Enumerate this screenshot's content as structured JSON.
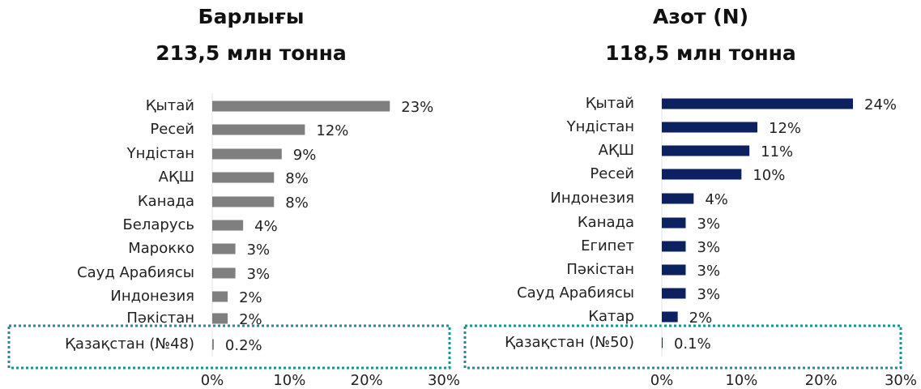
{
  "chart_data": [
    {
      "type": "barh",
      "title": "Барлығы",
      "subtitle": "213,5 млн тонна",
      "categories": [
        "Қытай",
        "Ресей",
        "Үндістан",
        "АҚШ",
        "Канада",
        "Беларусь",
        "Марокко",
        "Сауд Арабиясы",
        "Индонезия",
        "Пәкістан",
        "Қазақстан (№48)"
      ],
      "values": [
        23,
        12,
        9,
        8,
        8,
        4,
        3,
        3,
        2,
        2,
        0.2
      ],
      "value_labels": [
        "23%",
        "12%",
        "9%",
        "8%",
        "8%",
        "4%",
        "3%",
        "3%",
        "2%",
        "2%",
        "0.2%"
      ],
      "color": "#7f7f7f",
      "xlim": [
        0,
        30
      ],
      "xticks": [
        {
          "value": 0,
          "label": "0%"
        },
        {
          "value": 10,
          "label": "10%"
        },
        {
          "value": 20,
          "label": "20%"
        },
        {
          "value": 30,
          "label": "30%"
        }
      ]
    },
    {
      "type": "barh",
      "title": "Азот (N)",
      "subtitle": "118,5 млн тонна",
      "categories": [
        "Қытай",
        "Үндістан",
        "АҚШ",
        "Ресей",
        "Индонезия",
        "Канада",
        "Египет",
        "Пәкістан",
        "Сауд Арабиясы",
        "Катар",
        "Қазақстан (№50)"
      ],
      "values": [
        24,
        12,
        11,
        10,
        4,
        3,
        3,
        3,
        3,
        2,
        0.1
      ],
      "value_labels": [
        "24%",
        "12%",
        "11%",
        "10%",
        "4%",
        "3%",
        "3%",
        "3%",
        "3%",
        "2%",
        "0.1%"
      ],
      "color": "#0b2160",
      "xlim": [
        0,
        30
      ],
      "xticks": [
        {
          "value": 0,
          "label": "0%"
        },
        {
          "value": 10,
          "label": "10%"
        },
        {
          "value": 20,
          "label": "20%"
        },
        {
          "value": 30,
          "label": "30%"
        }
      ]
    }
  ]
}
